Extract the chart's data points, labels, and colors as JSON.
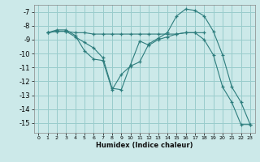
{
  "xlabel": "Humidex (Indice chaleur)",
  "bg_color": "#cce9e9",
  "grid_color": "#99cccc",
  "line_color": "#2d7d7d",
  "xlim": [
    -0.5,
    23.5
  ],
  "ylim": [
    -15.7,
    -6.5
  ],
  "yticks": [
    -7,
    -8,
    -9,
    -10,
    -11,
    -12,
    -13,
    -14,
    -15
  ],
  "xticks": [
    0,
    1,
    2,
    3,
    4,
    5,
    6,
    7,
    8,
    9,
    10,
    11,
    12,
    13,
    14,
    15,
    16,
    17,
    18,
    19,
    20,
    21,
    22,
    23
  ],
  "series": [
    {
      "x": [
        1,
        2,
        3,
        4,
        5,
        6,
        7,
        8,
        9,
        10,
        11,
        12,
        13,
        14,
        15,
        16,
        17,
        18,
        19,
        20,
        21,
        22,
        23
      ],
      "y": [
        -8.5,
        -8.3,
        -8.3,
        -8.7,
        -9.8,
        -10.4,
        -10.5,
        -12.6,
        -11.5,
        -10.9,
        -10.6,
        -9.3,
        -8.9,
        -8.5,
        -7.3,
        -6.8,
        -6.9,
        -7.3,
        -8.4,
        -10.1,
        -12.4,
        -13.5,
        -15.1
      ]
    },
    {
      "x": [
        1,
        2,
        3,
        4,
        5,
        6,
        7,
        8,
        9,
        10,
        11,
        12,
        13,
        14,
        15,
        16,
        17,
        18
      ],
      "y": [
        -8.5,
        -8.4,
        -8.4,
        -8.5,
        -8.5,
        -8.6,
        -8.6,
        -8.6,
        -8.6,
        -8.6,
        -8.6,
        -8.6,
        -8.6,
        -8.6,
        -8.6,
        -8.5,
        -8.5,
        -8.5
      ]
    },
    {
      "x": [
        1,
        2,
        3,
        4,
        5,
        6,
        7,
        8,
        9,
        10,
        11,
        12,
        13,
        14,
        15,
        16,
        17,
        18,
        19,
        20,
        21,
        22,
        23
      ],
      "y": [
        -8.5,
        -8.4,
        -8.4,
        -8.8,
        -9.2,
        -9.6,
        -10.3,
        -12.5,
        -12.6,
        -10.8,
        -9.1,
        -9.4,
        -9.0,
        -8.8,
        -8.6,
        -8.5,
        -8.5,
        -9.0,
        -10.1,
        -12.4,
        -13.5,
        -15.1,
        -15.1
      ]
    }
  ]
}
